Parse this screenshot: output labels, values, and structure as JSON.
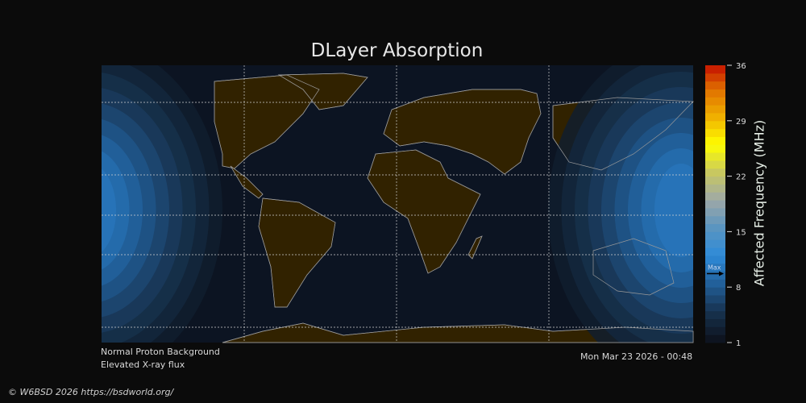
{
  "title": "DLayer Absorption",
  "notes": {
    "proton": "Normal Proton Background",
    "xray": "Elevated X-ray flux",
    "timestamp": "Mon Mar 23 2026 - 00:48"
  },
  "copyright": "© W6BSD 2026 https://bsdworld.org/",
  "colorbar": {
    "label": "Affected Frequency (MHz)",
    "range": [
      1,
      36
    ],
    "ticks": [
      "36",
      "29",
      "22",
      "15",
      "8",
      "1"
    ],
    "tick_values": [
      36,
      29,
      22,
      15,
      8,
      1
    ],
    "max_label": "Max",
    "max_value": 9.7,
    "stops": [
      "#0e1420",
      "#173350",
      "#22609a",
      "#2e8ad8",
      "#5a95c0",
      "#9ea8a8",
      "#c8c860",
      "#ffff00",
      "#f0b000",
      "#e07000",
      "#c00000"
    ]
  },
  "colors": {
    "background": "#0b0b0b",
    "ocean": "#0c1422",
    "land": "#312200",
    "coast": "#9a9a9a"
  }
}
